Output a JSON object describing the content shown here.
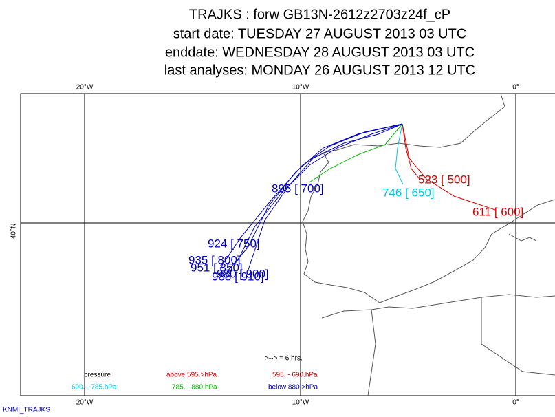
{
  "header": {
    "lines": [
      "TRAJKS : forw GB13N-2612z2703z24f_cP",
      "start date:  TUESDAY   27 AUGUST    2013 03 UTC",
      "enddate:  WEDNESDAY 28 AUGUST    2013 03 UTC",
      "last analyses:  MONDAY    26 AUGUST    2013 12 UTC"
    ]
  },
  "map": {
    "lon_labels_top": [
      "20°W",
      "10°W",
      "0°"
    ],
    "lon_labels_bottom": [
      "20°W",
      "10°W",
      "0°"
    ],
    "lat_labels": [
      "40°N"
    ]
  },
  "trajectories": {
    "labels": [
      "523 [ 500]",
      "746 [ 650]",
      "611 [ 600]",
      "895 [ 700]",
      "924 [ 750]",
      "935 [ 800]",
      "951 [ 850]",
      "980 [ 900]",
      "988 [ 910]"
    ]
  },
  "legend": {
    "title": "pressure",
    "items": [
      "above  595.>hPa",
      "595. -   690.hPa",
      "690. -   785.hPa",
      "785. -   880.hPa",
      "below  880.>hPa"
    ],
    "arrow_note": ">--> =  6 hrs."
  },
  "footer": {
    "credit": "KNMI_TRAJKS"
  }
}
